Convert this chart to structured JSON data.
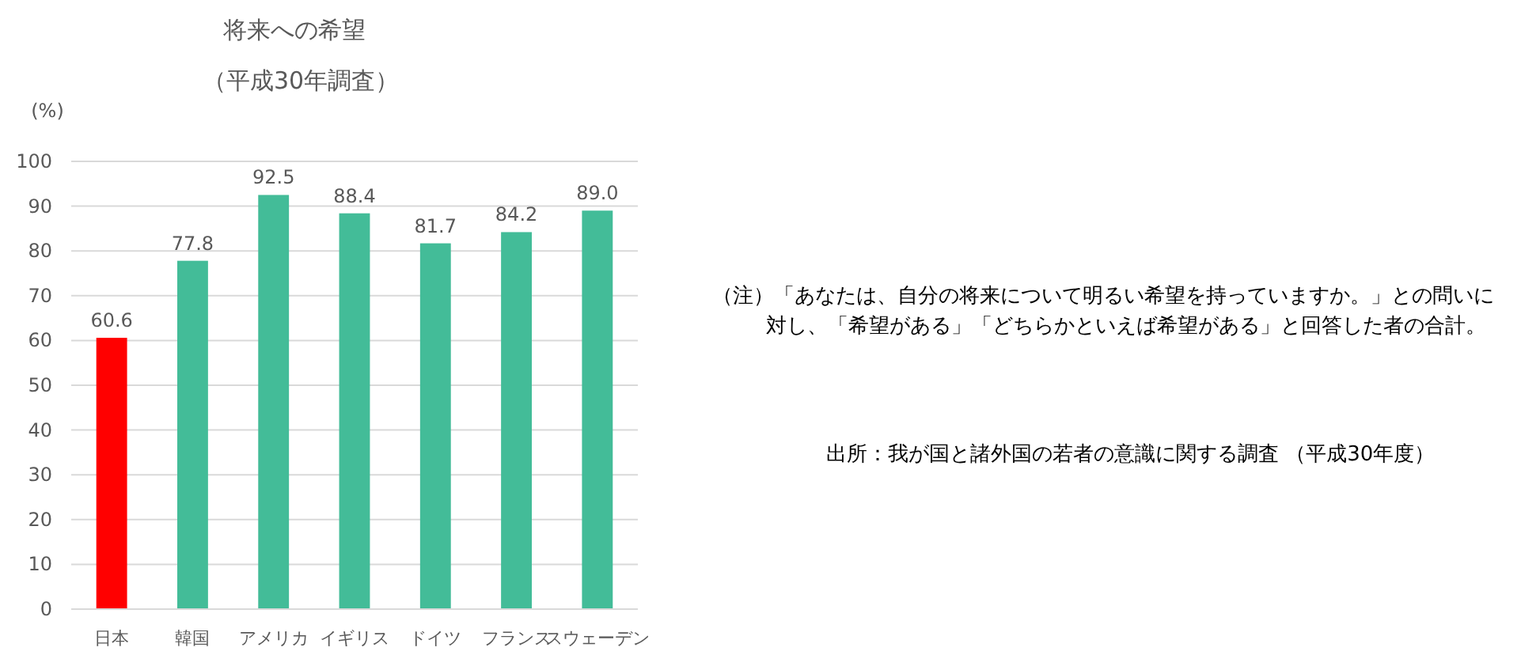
{
  "chart_data": {
    "type": "bar",
    "title": "将来への希望",
    "subtitle": "（平成30年調査）",
    "ylabel": "(%)",
    "categories": [
      "日本",
      "韓国",
      "アメリカ",
      "イギリス",
      "ドイツ",
      "フランス",
      "スウェーデン"
    ],
    "values": [
      60.6,
      77.8,
      92.5,
      88.4,
      81.7,
      84.2,
      89.0
    ],
    "colors": [
      "#ff0000",
      "#43bc98",
      "#43bc98",
      "#43bc98",
      "#43bc98",
      "#43bc98",
      "#43bc98"
    ],
    "value_labels": [
      "60.6",
      "77.8",
      "92.5",
      "88.4",
      "81.7",
      "84.2",
      "89.0"
    ],
    "ylim": [
      0,
      100
    ],
    "yticks": [
      0,
      10,
      20,
      30,
      40,
      50,
      60,
      70,
      80,
      90,
      100
    ],
    "grid": "y",
    "annotations": [
      "（注）「あなたは、自分の将来について明るい希望を持っていますか。」との問いに対し、「希望がある」「どちらかといえば希望がある」と回答した者の合計。",
      "出所：我が国と諸外国の若者の意識に関する調査 （平成30年度）"
    ]
  }
}
